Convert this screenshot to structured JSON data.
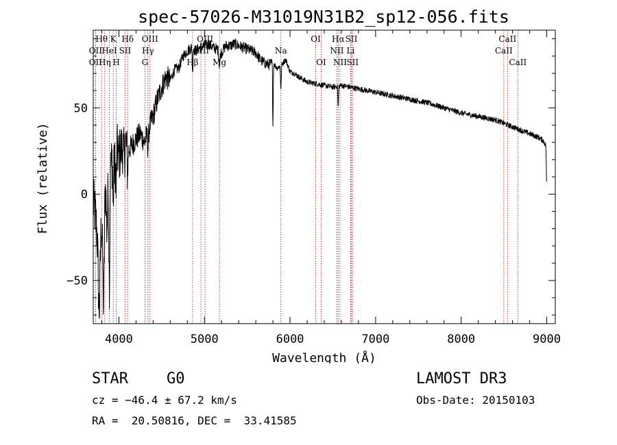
{
  "chart_data": {
    "type": "line",
    "title": "spec-57026-M31019N31B2_sp12-056.fits",
    "xlabel": "Wavelength (Å)",
    "ylabel": "Flux (relative)",
    "xlim": [
      3700,
      9100
    ],
    "ylim": [
      -75,
      95
    ],
    "xticks": [
      4000,
      5000,
      6000,
      7000,
      8000,
      9000
    ],
    "yticks": [
      -50,
      0,
      50
    ],
    "xtick_labels": [
      "4000",
      "5000",
      "6000",
      "7000",
      "8000",
      "9000"
    ],
    "ytick_labels": [
      "−50",
      "0",
      "50"
    ],
    "spectrum_anchors": [
      [
        3700,
        -5
      ],
      [
        3720,
        -10
      ],
      [
        3740,
        -20
      ],
      [
        3760,
        -25
      ],
      [
        3780,
        -18
      ],
      [
        3800,
        -15
      ],
      [
        3820,
        -8
      ],
      [
        3840,
        5
      ],
      [
        3860,
        10
      ],
      [
        3880,
        5
      ],
      [
        3900,
        15
      ],
      [
        3920,
        20
      ],
      [
        3940,
        15
      ],
      [
        3960,
        18
      ],
      [
        3980,
        25
      ],
      [
        4000,
        22
      ],
      [
        4020,
        25
      ],
      [
        4040,
        28
      ],
      [
        4060,
        22
      ],
      [
        4080,
        30
      ],
      [
        4100,
        25
      ],
      [
        4150,
        28
      ],
      [
        4200,
        32
      ],
      [
        4250,
        35
      ],
      [
        4300,
        30
      ],
      [
        4350,
        38
      ],
      [
        4400,
        45
      ],
      [
        4450,
        55
      ],
      [
        4500,
        62
      ],
      [
        4550,
        68
      ],
      [
        4600,
        66
      ],
      [
        4650,
        72
      ],
      [
        4700,
        73
      ],
      [
        4750,
        80
      ],
      [
        4800,
        83
      ],
      [
        4850,
        85
      ],
      [
        4900,
        83
      ],
      [
        4950,
        85
      ],
      [
        5000,
        86
      ],
      [
        5050,
        87
      ],
      [
        5100,
        85
      ],
      [
        5150,
        84
      ],
      [
        5200,
        82
      ],
      [
        5250,
        86
      ],
      [
        5300,
        86
      ],
      [
        5350,
        87
      ],
      [
        5400,
        86
      ],
      [
        5450,
        85
      ],
      [
        5500,
        84
      ],
      [
        5550,
        83
      ],
      [
        5600,
        82
      ],
      [
        5650,
        78
      ],
      [
        5700,
        76
      ],
      [
        5750,
        75
      ],
      [
        5800,
        76
      ],
      [
        5850,
        73
      ],
      [
        5900,
        75
      ],
      [
        5950,
        78
      ],
      [
        6000,
        71
      ],
      [
        6050,
        70
      ],
      [
        6100,
        68
      ],
      [
        6200,
        65
      ],
      [
        6300,
        64
      ],
      [
        6400,
        63
      ],
      [
        6500,
        62
      ],
      [
        6600,
        63
      ],
      [
        6700,
        62
      ],
      [
        6800,
        61
      ],
      [
        6900,
        60
      ],
      [
        7000,
        59
      ],
      [
        7200,
        57
      ],
      [
        7400,
        55
      ],
      [
        7600,
        53
      ],
      [
        7800,
        50
      ],
      [
        8000,
        47
      ],
      [
        8200,
        45
      ],
      [
        8400,
        43
      ],
      [
        8500,
        41
      ],
      [
        8600,
        39
      ],
      [
        8700,
        37
      ],
      [
        8800,
        35
      ],
      [
        8900,
        33
      ],
      [
        8960,
        31
      ],
      [
        8990,
        28
      ],
      [
        9000,
        2
      ]
    ],
    "absorption_features": [
      {
        "x": 3770,
        "depth": 45,
        "width": 15
      },
      {
        "x": 3820,
        "depth": 55,
        "width": 12
      },
      {
        "x": 3860,
        "depth": 30,
        "width": 10
      },
      {
        "x": 3889,
        "depth": 60,
        "width": 8
      },
      {
        "x": 3933,
        "depth": 25,
        "width": 6
      },
      {
        "x": 3968,
        "depth": 20,
        "width": 6
      },
      {
        "x": 4102,
        "depth": 12,
        "width": 8
      },
      {
        "x": 4340,
        "depth": 10,
        "width": 8
      },
      {
        "x": 4861,
        "depth": 15,
        "width": 5
      },
      {
        "x": 5175,
        "depth": 8,
        "width": 10
      },
      {
        "x": 5800,
        "depth": 35,
        "width": 5
      },
      {
        "x": 5893,
        "depth": 14,
        "width": 6
      },
      {
        "x": 6563,
        "depth": 12,
        "width": 6
      }
    ],
    "spectral_lines": [
      {
        "label": "Hθ",
        "x": 3798,
        "row": 0
      },
      {
        "label": "OII",
        "x": 3727,
        "row": 1
      },
      {
        "label": "OII",
        "x": 3727,
        "row": 2
      },
      {
        "label": "K",
        "x": 3934,
        "row": 0
      },
      {
        "label": "HeI",
        "x": 3889,
        "row": 1
      },
      {
        "label": "Hη",
        "x": 3835,
        "row": 2
      },
      {
        "label": "Hδ",
        "x": 4102,
        "row": 0
      },
      {
        "label": "SII",
        "x": 4072,
        "row": 1
      },
      {
        "label": "H",
        "x": 3969,
        "row": 2
      },
      {
        "label": "OIII",
        "x": 4363,
        "row": 0
      },
      {
        "label": "Hγ",
        "x": 4340,
        "row": 1
      },
      {
        "label": "G",
        "x": 4305,
        "row": 2
      },
      {
        "label": "OIII",
        "x": 5007,
        "row": 0
      },
      {
        "label": "OIII",
        "x": 4959,
        "row": 1
      },
      {
        "label": "Hβ",
        "x": 4861,
        "row": 2
      },
      {
        "label": "Mg",
        "x": 5175,
        "row": 2
      },
      {
        "label": "Na",
        "x": 5893,
        "row": 1
      },
      {
        "label": "OI",
        "x": 6300,
        "row": 0
      },
      {
        "label": "OI",
        "x": 6364,
        "row": 2
      },
      {
        "label": "Hα",
        "x": 6563,
        "row": 0
      },
      {
        "label": "NII",
        "x": 6548,
        "row": 1
      },
      {
        "label": "NII",
        "x": 6584,
        "row": 2
      },
      {
        "label": "SII",
        "x": 6717,
        "row": 0
      },
      {
        "label": "Li",
        "x": 6708,
        "row": 1
      },
      {
        "label": "SII",
        "x": 6731,
        "row": 2
      },
      {
        "label": "CaII",
        "x": 8542,
        "row": 0
      },
      {
        "label": "CaII",
        "x": 8498,
        "row": 1
      },
      {
        "label": "CaII",
        "x": 8662,
        "row": 2
      }
    ],
    "line_color": "#b22222"
  },
  "info": {
    "object_class": "STAR",
    "subclass": "G0",
    "survey": "LAMOST DR3",
    "redshift": "cz = −46.4 ± 67.2 km/s",
    "obs_date": "Obs-Date: 20150103",
    "coords": "RA =  20.50816, DEC =  33.41585"
  }
}
